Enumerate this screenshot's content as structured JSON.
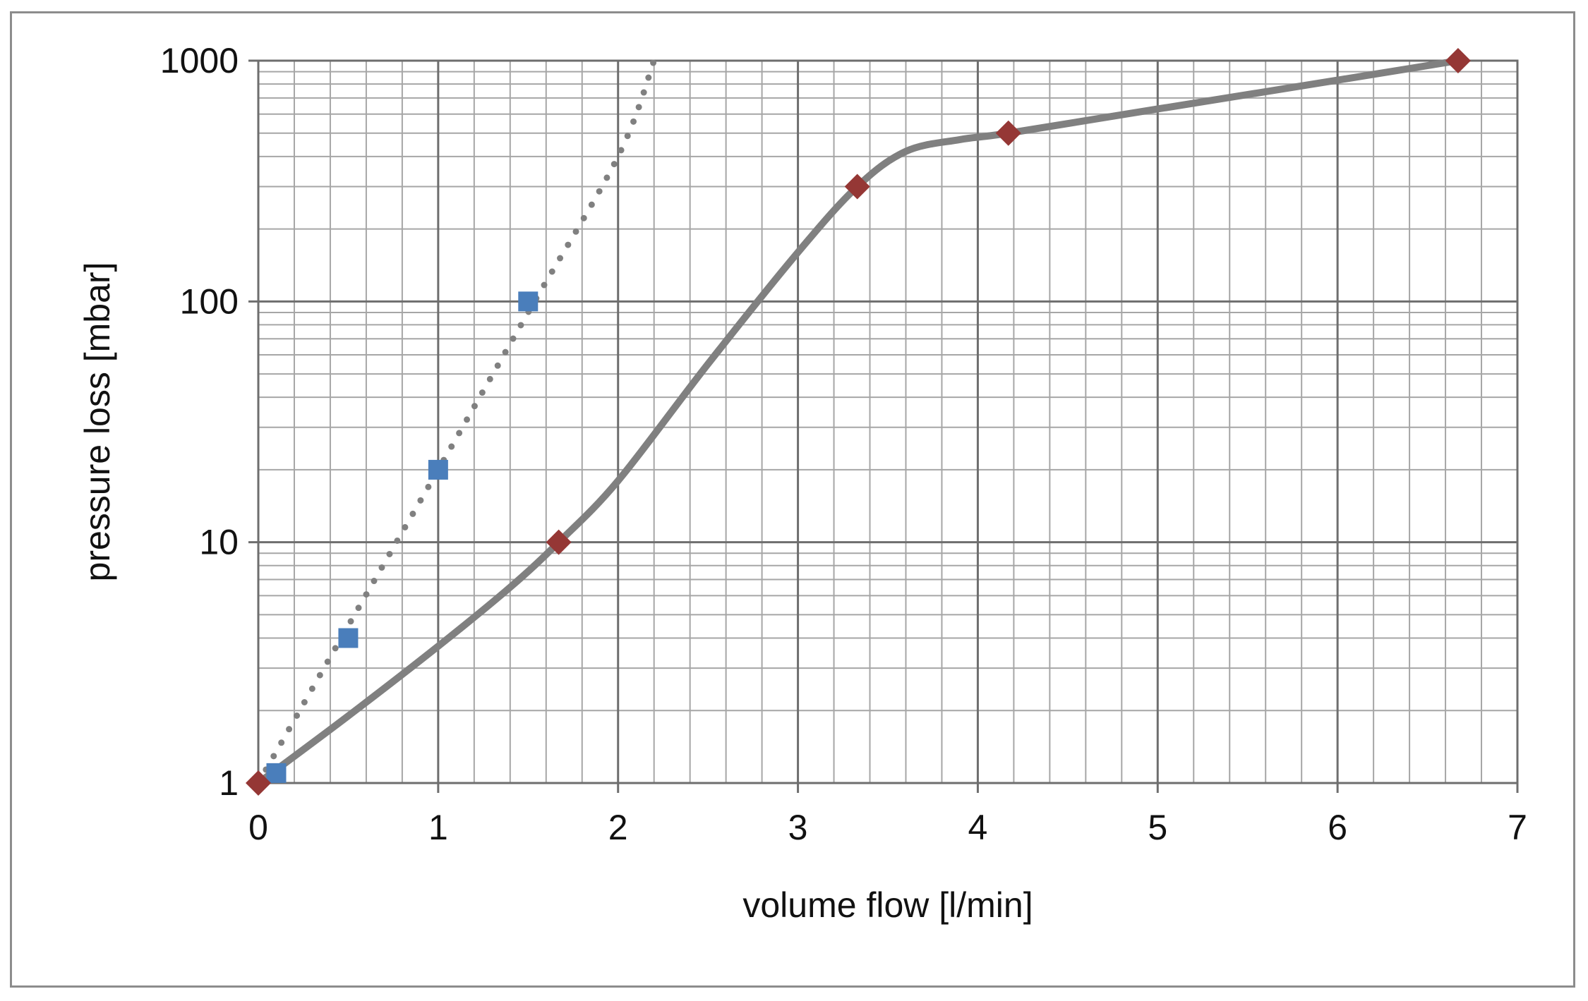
{
  "chart_data": {
    "type": "scatter",
    "title": "",
    "xlabel": "volume flow [l/min]",
    "ylabel": "pressure loss [mbar]",
    "xlim": [
      0,
      7
    ],
    "ylim": [
      1,
      1000
    ],
    "yscale": "log",
    "grid": true,
    "legend": "none",
    "x_ticks": [
      "0",
      "1",
      "2",
      "3",
      "4",
      "5",
      "6",
      "7"
    ],
    "y_ticks": [
      "1",
      "10",
      "100",
      "1000"
    ],
    "series": [
      {
        "marker": "square",
        "color": "#4a7ebb",
        "points": [
          {
            "x": 0.1,
            "y": 1.1
          },
          {
            "x": 0.5,
            "y": 4
          },
          {
            "x": 1.0,
            "y": 20
          },
          {
            "x": 1.5,
            "y": 100
          }
        ],
        "trendline": {
          "style": "dotted",
          "color": "#808080",
          "points": [
            {
              "x": 0.0,
              "y": 1.0
            },
            {
              "x": 0.5,
              "y": 4.5
            },
            {
              "x": 1.0,
              "y": 20
            },
            {
              "x": 1.5,
              "y": 90
            },
            {
              "x": 2.0,
              "y": 400
            },
            {
              "x": 2.2,
              "y": 1000
            }
          ]
        }
      },
      {
        "marker": "diamond",
        "color": "#953735",
        "points": [
          {
            "x": 0.0,
            "y": 1
          },
          {
            "x": 1.67,
            "y": 10
          },
          {
            "x": 3.33,
            "y": 300
          },
          {
            "x": 4.17,
            "y": 500
          },
          {
            "x": 6.67,
            "y": 1000
          }
        ],
        "curve": {
          "style": "solid",
          "color": "#808080",
          "points": [
            {
              "x": 0.0,
              "y": 1.0
            },
            {
              "x": 0.5,
              "y": 1.9
            },
            {
              "x": 1.0,
              "y": 3.7
            },
            {
              "x": 1.4,
              "y": 6.5
            },
            {
              "x": 1.67,
              "y": 10
            },
            {
              "x": 2.0,
              "y": 18
            },
            {
              "x": 2.5,
              "y": 55
            },
            {
              "x": 3.0,
              "y": 160
            },
            {
              "x": 3.33,
              "y": 300
            },
            {
              "x": 3.6,
              "y": 420
            },
            {
              "x": 3.9,
              "y": 470
            },
            {
              "x": 4.17,
              "y": 500
            },
            {
              "x": 5.0,
              "y": 630
            },
            {
              "x": 6.0,
              "y": 830
            },
            {
              "x": 6.67,
              "y": 1000
            }
          ]
        }
      }
    ]
  }
}
